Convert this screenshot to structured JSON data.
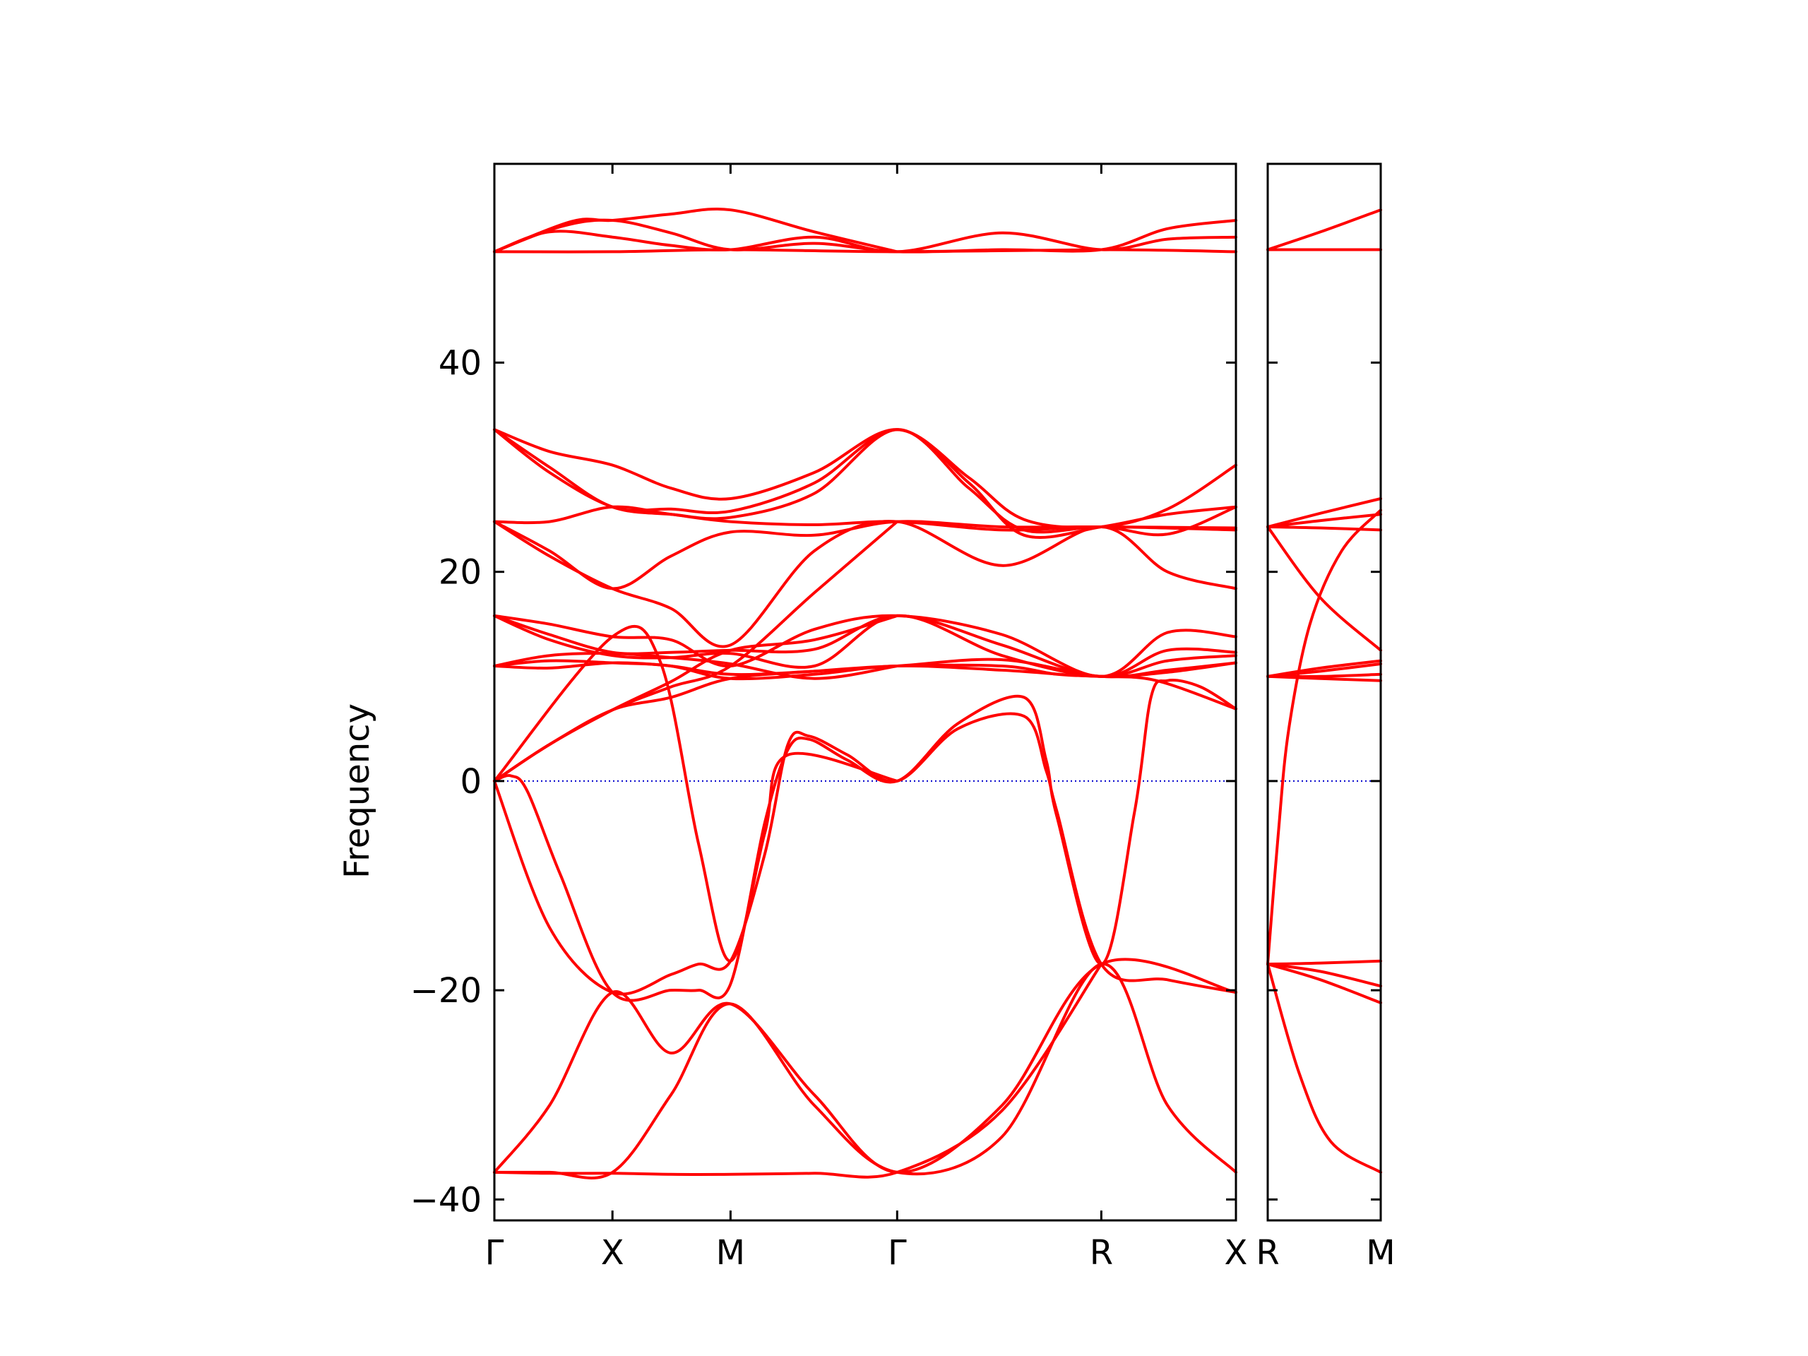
{
  "chart_data": {
    "type": "line",
    "ylabel": "Frequency",
    "ylim": [
      -42,
      59
    ],
    "yticks": [
      -40,
      -20,
      0,
      20,
      40
    ],
    "ytick_labels": [
      "−40",
      "−20",
      "0",
      "20",
      "40"
    ],
    "line_color": "#ff0000",
    "zero_line_color": "#0000cc",
    "panels": [
      {
        "xlim": [
          0,
          6.72
        ],
        "xticks": [
          {
            "label": "Γ",
            "x": 0
          },
          {
            "label": "X",
            "x": 1.07
          },
          {
            "label": "M",
            "x": 2.14
          },
          {
            "label": "Γ",
            "x": 3.65
          },
          {
            "label": "R",
            "x": 5.5
          },
          {
            "label": "X",
            "x": 6.72
          }
        ],
        "series": [
          {
            "x": [
              0,
              1.07,
              2.14,
              3.65,
              5.5,
              6.72
            ],
            "y": [
              50.6,
              50.6,
              50.8,
              50.6,
              50.8,
              50.6
            ]
          },
          {
            "x": [
              0,
              0.5,
              1.07,
              1.6,
              2.14,
              2.9,
              3.65,
              4.6,
              5.5,
              6.1,
              6.72
            ],
            "y": [
              50.6,
              52.5,
              52.0,
              51.2,
              50.8,
              52.0,
              50.6,
              52.4,
              50.8,
              51.8,
              52.0
            ]
          },
          {
            "x": [
              0,
              0.6,
              1.07,
              1.6,
              2.14,
              2.9,
              3.65,
              4.6,
              5.5,
              6.1,
              6.72
            ],
            "y": [
              50.6,
              53.0,
              53.6,
              52.4,
              50.8,
              51.4,
              50.6,
              50.8,
              50.8,
              52.8,
              53.6
            ]
          },
          {
            "x": [
              0,
              0.7,
              1.07,
              1.6,
              2.14,
              2.9,
              3.65
            ],
            "y": [
              50.6,
              53.5,
              53.6,
              54.2,
              54.6,
              52.5,
              50.6
            ]
          },
          {
            "x": [
              0,
              0.5,
              1.07,
              1.6,
              2.14,
              2.9,
              3.65,
              4.3,
              4.8,
              5.5,
              6.1,
              6.72
            ],
            "y": [
              33.6,
              31.5,
              30.2,
              28.0,
              27.0,
              29.5,
              33.6,
              29.0,
              25.0,
              24.3,
              26.0,
              30.2
            ]
          },
          {
            "x": [
              0,
              0.5,
              1.07,
              1.6,
              2.14,
              2.9,
              3.65,
              4.3,
              4.8,
              5.5,
              6.1,
              6.72
            ],
            "y": [
              33.6,
              30.0,
              26.2,
              26.0,
              25.8,
              28.5,
              33.6,
              28.5,
              23.5,
              24.3,
              25.5,
              26.2
            ]
          },
          {
            "x": [
              0,
              0.5,
              1.07,
              1.6,
              2.14,
              2.9,
              3.65,
              4.3,
              4.8,
              5.5,
              6.1,
              6.72
            ],
            "y": [
              33.6,
              29.5,
              26.2,
              25.5,
              25.2,
              27.5,
              33.6,
              28.0,
              24.0,
              24.3,
              23.6,
              26.2
            ]
          },
          {
            "x": [
              0,
              0.5,
              1.07,
              1.6,
              2.14,
              2.9,
              3.65,
              4.6,
              5.5,
              6.72
            ],
            "y": [
              24.8,
              24.8,
              26.2,
              25.5,
              24.8,
              24.5,
              24.8,
              24.0,
              24.3,
              24.0
            ]
          },
          {
            "x": [
              0,
              0.5,
              1.07,
              1.6,
              2.14,
              2.9,
              3.65,
              4.6,
              5.5,
              6.72
            ],
            "y": [
              24.8,
              22.0,
              18.4,
              21.5,
              23.8,
              23.5,
              24.8,
              24.3,
              24.3,
              24.2
            ]
          },
          {
            "x": [
              0,
              0.5,
              1.07,
              1.6,
              2.14,
              2.9,
              3.65,
              4.6,
              5.5,
              6.1,
              6.72
            ],
            "y": [
              24.8,
              21.5,
              18.4,
              16.5,
              13.0,
              22.0,
              24.8,
              20.6,
              24.3,
              20.0,
              18.4
            ]
          },
          {
            "x": [
              0,
              0.5,
              1.07,
              1.6,
              2.14,
              2.9,
              3.65,
              4.6,
              5.5,
              6.1,
              6.72
            ],
            "y": [
              15.8,
              15.0,
              13.8,
              13.5,
              11.0,
              14.5,
              15.8,
              14.0,
              10.0,
              14.2,
              13.8
            ]
          },
          {
            "x": [
              0,
              0.5,
              1.07,
              1.6,
              2.14,
              2.9,
              3.65,
              4.6,
              5.5,
              6.1,
              6.72
            ],
            "y": [
              15.8,
              14.0,
              12.3,
              12.3,
              12.5,
              12.6,
              15.8,
              13.0,
              10.0,
              12.5,
              12.3
            ]
          },
          {
            "x": [
              0,
              0.5,
              1.07,
              1.6,
              2.14,
              2.9,
              3.65,
              4.6,
              5.5,
              6.1,
              6.72
            ],
            "y": [
              15.8,
              13.5,
              12.0,
              11.8,
              12.2,
              11.0,
              15.8,
              12.0,
              10.0,
              11.5,
              12.0
            ]
          },
          {
            "x": [
              0,
              0.5,
              1.07,
              1.6,
              2.14,
              2.9,
              3.65,
              4.6,
              5.5,
              6.1,
              6.72
            ],
            "y": [
              11.0,
              10.8,
              11.3,
              11.0,
              10.2,
              10.5,
              11.0,
              11.6,
              10.0,
              10.6,
              11.3
            ]
          },
          {
            "x": [
              0,
              0.5,
              1.07,
              1.6,
              2.14,
              2.9,
              3.65,
              4.6,
              5.5,
              6.1,
              6.72
            ],
            "y": [
              11.0,
              11.5,
              11.3,
              11.0,
              9.8,
              10.2,
              11.0,
              10.6,
              10.0,
              10.4,
              11.3
            ]
          },
          {
            "x": [
              0,
              0.5,
              1.07,
              1.6,
              2.14,
              2.9,
              3.65
            ],
            "y": [
              11.0,
              12.0,
              12.2,
              11.8,
              11.2,
              9.8,
              11.0
            ]
          },
          {
            "x": [
              0,
              0.5,
              1.07,
              1.6,
              2.14,
              2.9,
              3.65,
              4.6,
              5.1,
              5.5,
              6.0,
              6.72
            ],
            "y": [
              0,
              3.5,
              6.8,
              8.0,
              9.8,
              10.5,
              11.0,
              11.0,
              10.2,
              10.0,
              9.6,
              6.9
            ]
          },
          {
            "x": [
              0,
              0.5,
              1.07,
              1.6,
              2.14,
              2.9,
              3.65
            ],
            "y": [
              0,
              3.5,
              6.8,
              9.5,
              12.5,
              13.5,
              15.8
            ]
          },
          {
            "x": [
              0,
              0.5,
              1.07,
              1.6,
              2.14,
              2.9,
              3.65
            ],
            "y": [
              0,
              3.5,
              6.8,
              9.0,
              11.0,
              18.0,
              24.8
            ]
          },
          {
            "x": [
              0,
              0.15,
              0.3,
              0.6,
              1.07,
              1.6,
              1.85,
              2.14,
              2.45,
              2.66,
              2.85,
              3.2,
              3.65,
              4.2,
              4.8,
              5.0,
              5.1,
              5.5,
              5.8,
              5.95,
              6.1,
              6.4,
              6.72
            ],
            "y": [
              0,
              0.5,
              -1.0,
              -9.0,
              -20.2,
              -20.0,
              -20.0,
              -19.4,
              -4.0,
              3.0,
              4.0,
              2.0,
              0,
              5.5,
              8.0,
              2.0,
              -3.5,
              -17.5,
              -3.0,
              8.0,
              9.6,
              9.0,
              6.9
            ]
          },
          {
            "x": [
              0,
              0.5,
              1.07,
              1.6,
              1.85,
              2.14,
              2.45,
              2.66,
              2.85,
              3.2,
              3.65,
              4.2,
              4.8,
              5.0,
              5.1,
              5.5,
              6.1,
              6.72
            ],
            "y": [
              0,
              -14.0,
              -20.2,
              -18.5,
              -17.5,
              -17.2,
              -7.0,
              3.5,
              4.3,
              2.5,
              0,
              5.0,
              6.2,
              1.0,
              -3.0,
              -17.5,
              -19.0,
              -20.2
            ]
          },
          {
            "x": [
              0,
              1.07,
              1.5,
              1.85,
              2.14,
              2.45,
              2.66,
              3.65
            ],
            "y": [
              0,
              13.8,
              11.5,
              -6.0,
              -17.2,
              -5.0,
              2.5,
              0
            ]
          },
          {
            "x": [
              0,
              0.5,
              1.07,
              1.6,
              2.14,
              2.9,
              3.65,
              4.6,
              5.5,
              6.72
            ],
            "y": [
              -37.4,
              -31.0,
              -20.2,
              -26.0,
              -21.3,
              -30.0,
              -37.4,
              -31.0,
              -17.5,
              -20.2
            ]
          },
          {
            "x": [
              0,
              0.5,
              1.07,
              1.6,
              2.14,
              2.9,
              3.65,
              4.6,
              5.5,
              6.1,
              6.72
            ],
            "y": [
              -37.4,
              -37.4,
              -37.4,
              -30.0,
              -21.3,
              -31.0,
              -37.4,
              -34.0,
              -17.5,
              -31.0,
              -37.4
            ]
          },
          {
            "x": [
              0,
              0.5,
              1.07,
              1.6,
              2.14,
              2.9,
              3.65,
              4.6,
              5.5
            ],
            "y": [
              -37.4,
              -37.5,
              -37.5,
              -37.6,
              -37.6,
              -37.5,
              -37.4,
              -31.5,
              -17.5
            ]
          }
        ]
      },
      {
        "xlim": [
          0,
          1.07
        ],
        "xticks": [
          {
            "label": "R",
            "x": 0
          },
          {
            "label": "M",
            "x": 1.07
          }
        ],
        "series": [
          {
            "x": [
              0,
              0.5,
              1.07
            ],
            "y": [
              50.8,
              52.5,
              54.6
            ]
          },
          {
            "x": [
              0,
              0.5,
              1.07
            ],
            "y": [
              50.8,
              50.8,
              50.8
            ]
          },
          {
            "x": [
              0,
              0.5,
              1.07
            ],
            "y": [
              24.3,
              25.6,
              27.0
            ]
          },
          {
            "x": [
              0,
              0.5,
              1.07
            ],
            "y": [
              24.3,
              24.9,
              25.5
            ]
          },
          {
            "x": [
              0,
              0.5,
              1.07
            ],
            "y": [
              24.3,
              24.2,
              24.0
            ]
          },
          {
            "x": [
              0,
              0.5,
              1.07
            ],
            "y": [
              24.3,
              17.5,
              12.5
            ]
          },
          {
            "x": [
              0,
              0.5,
              1.07
            ],
            "y": [
              10.0,
              10.8,
              11.5
            ]
          },
          {
            "x": [
              0,
              0.5,
              1.07
            ],
            "y": [
              10.0,
              10.5,
              11.2
            ]
          },
          {
            "x": [
              0,
              0.5,
              1.07
            ],
            "y": [
              10.0,
              9.8,
              9.6
            ]
          },
          {
            "x": [
              0,
              0.5,
              1.07
            ],
            "y": [
              10.0,
              10.0,
              10.2
            ]
          },
          {
            "x": [
              0,
              0.1,
              0.2,
              0.4,
              0.7,
              1.07
            ],
            "y": [
              -17.5,
              -5.0,
              5.0,
              15.0,
              22.0,
              25.9
            ]
          },
          {
            "x": [
              0,
              0.5,
              1.07
            ],
            "y": [
              -17.5,
              -17.4,
              -17.2
            ]
          },
          {
            "x": [
              0,
              0.5,
              1.07
            ],
            "y": [
              -17.5,
              -18.2,
              -19.6
            ]
          },
          {
            "x": [
              0,
              0.5,
              1.07
            ],
            "y": [
              -17.5,
              -19.0,
              -21.2
            ]
          },
          {
            "x": [
              0,
              0.3,
              0.6,
              1.07
            ],
            "y": [
              -17.5,
              -28.0,
              -34.5,
              -37.4
            ]
          }
        ]
      }
    ]
  }
}
